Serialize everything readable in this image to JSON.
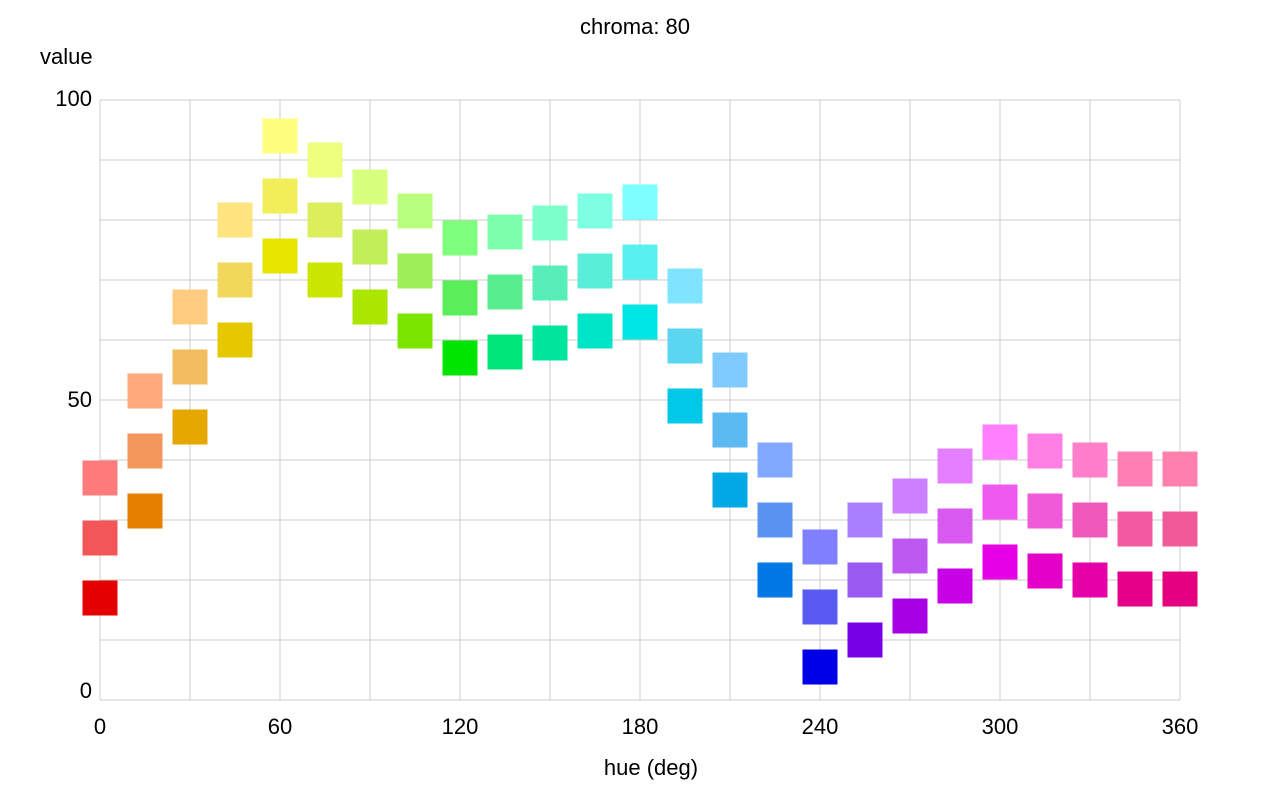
{
  "chart_data": {
    "type": "scatter",
    "title": "chroma: 80",
    "xlabel": "hue (deg)",
    "ylabel": "value",
    "xlim": [
      0,
      360
    ],
    "ylim": [
      0,
      100
    ],
    "x_ticks": [
      0,
      60,
      120,
      180,
      240,
      300,
      360
    ],
    "y_ticks": [
      0,
      50,
      100
    ],
    "grid": true,
    "marker": "square",
    "points": [
      {
        "hue": 0,
        "value": 37,
        "color": "#ff7b7b"
      },
      {
        "hue": 0,
        "value": 27,
        "color": "#f25656"
      },
      {
        "hue": 0,
        "value": 17,
        "color": "#e40000"
      },
      {
        "hue": 15,
        "value": 51.5,
        "color": "#ffaa7d"
      },
      {
        "hue": 15,
        "value": 41.5,
        "color": "#f3975d"
      },
      {
        "hue": 15,
        "value": 31.5,
        "color": "#e67e00"
      },
      {
        "hue": 30,
        "value": 65.5,
        "color": "#ffcc7f"
      },
      {
        "hue": 30,
        "value": 55.5,
        "color": "#f2bd5e"
      },
      {
        "hue": 30,
        "value": 45.5,
        "color": "#e6a800"
      },
      {
        "hue": 45,
        "value": 80,
        "color": "#ffe47f"
      },
      {
        "hue": 45,
        "value": 70,
        "color": "#f2d85a"
      },
      {
        "hue": 45,
        "value": 60,
        "color": "#e5c800"
      },
      {
        "hue": 60,
        "value": 94,
        "color": "#ffff7e"
      },
      {
        "hue": 60,
        "value": 84,
        "color": "#f0ef59"
      },
      {
        "hue": 60,
        "value": 74,
        "color": "#e5e500"
      },
      {
        "hue": 75,
        "value": 90,
        "color": "#eeff7f"
      },
      {
        "hue": 75,
        "value": 80,
        "color": "#dcee5c"
      },
      {
        "hue": 75,
        "value": 70,
        "color": "#cbe600"
      },
      {
        "hue": 90,
        "value": 85.5,
        "color": "#d8ff7d"
      },
      {
        "hue": 90,
        "value": 75.5,
        "color": "#c2ee5a"
      },
      {
        "hue": 90,
        "value": 65.5,
        "color": "#abe600"
      },
      {
        "hue": 105,
        "value": 81.5,
        "color": "#b8ff7e"
      },
      {
        "hue": 105,
        "value": 71.5,
        "color": "#9eee57"
      },
      {
        "hue": 105,
        "value": 61.5,
        "color": "#7ae600"
      },
      {
        "hue": 120,
        "value": 77,
        "color": "#7eff7e"
      },
      {
        "hue": 120,
        "value": 67,
        "color": "#5aef5a"
      },
      {
        "hue": 120,
        "value": 57,
        "color": "#00e500"
      },
      {
        "hue": 135,
        "value": 78,
        "color": "#7effad"
      },
      {
        "hue": 135,
        "value": 68,
        "color": "#58ee90"
      },
      {
        "hue": 135,
        "value": 58,
        "color": "#00e57a"
      },
      {
        "hue": 150,
        "value": 79.5,
        "color": "#7dffcc"
      },
      {
        "hue": 150,
        "value": 69.5,
        "color": "#58eeb8"
      },
      {
        "hue": 150,
        "value": 59.5,
        "color": "#00e59e"
      },
      {
        "hue": 165,
        "value": 81.5,
        "color": "#7effe4"
      },
      {
        "hue": 165,
        "value": 71.5,
        "color": "#59eed8"
      },
      {
        "hue": 165,
        "value": 61.5,
        "color": "#00e5c8"
      },
      {
        "hue": 180,
        "value": 83,
        "color": "#7effff"
      },
      {
        "hue": 180,
        "value": 73,
        "color": "#59f1f0"
      },
      {
        "hue": 180,
        "value": 63,
        "color": "#00e5e5"
      },
      {
        "hue": 195,
        "value": 69,
        "color": "#7fe4ff"
      },
      {
        "hue": 195,
        "value": 59,
        "color": "#5bd6f1"
      },
      {
        "hue": 195,
        "value": 49,
        "color": "#00c8e6"
      },
      {
        "hue": 210,
        "value": 55,
        "color": "#7fcbff"
      },
      {
        "hue": 210,
        "value": 45,
        "color": "#5bbaf2"
      },
      {
        "hue": 210,
        "value": 35,
        "color": "#00a8e6"
      },
      {
        "hue": 225,
        "value": 40,
        "color": "#80a9ff"
      },
      {
        "hue": 225,
        "value": 30,
        "color": "#5a92f2"
      },
      {
        "hue": 225,
        "value": 20,
        "color": "#0078e6"
      },
      {
        "hue": 240,
        "value": 25.5,
        "color": "#7f7fff"
      },
      {
        "hue": 240,
        "value": 15.5,
        "color": "#5a5af2"
      },
      {
        "hue": 240,
        "value": 5.5,
        "color": "#0000e6"
      },
      {
        "hue": 255,
        "value": 30,
        "color": "#aa7fff"
      },
      {
        "hue": 255,
        "value": 20,
        "color": "#9a59f1"
      },
      {
        "hue": 255,
        "value": 10,
        "color": "#7700e6"
      },
      {
        "hue": 270,
        "value": 34,
        "color": "#cc7fff"
      },
      {
        "hue": 270,
        "value": 24,
        "color": "#bd59f0"
      },
      {
        "hue": 270,
        "value": 14,
        "color": "#a800e5"
      },
      {
        "hue": 285,
        "value": 39,
        "color": "#e47fff"
      },
      {
        "hue": 285,
        "value": 29,
        "color": "#d859f0"
      },
      {
        "hue": 285,
        "value": 19,
        "color": "#c800e6"
      },
      {
        "hue": 300,
        "value": 43,
        "color": "#ff7fff"
      },
      {
        "hue": 300,
        "value": 33,
        "color": "#f059f0"
      },
      {
        "hue": 300,
        "value": 23,
        "color": "#e500e5"
      },
      {
        "hue": 315,
        "value": 41.5,
        "color": "#ff7fe4"
      },
      {
        "hue": 315,
        "value": 31.5,
        "color": "#f059d8"
      },
      {
        "hue": 315,
        "value": 21.5,
        "color": "#e500c8"
      },
      {
        "hue": 330,
        "value": 40,
        "color": "#ff7fcb"
      },
      {
        "hue": 330,
        "value": 30,
        "color": "#f059bb"
      },
      {
        "hue": 330,
        "value": 20,
        "color": "#e500a8"
      },
      {
        "hue": 345,
        "value": 38.5,
        "color": "#ff7fb4"
      },
      {
        "hue": 345,
        "value": 28.5,
        "color": "#f15aa2"
      },
      {
        "hue": 345,
        "value": 18.5,
        "color": "#e5008a"
      },
      {
        "hue": 360,
        "value": 38.5,
        "color": "#ff7fad"
      },
      {
        "hue": 360,
        "value": 28.5,
        "color": "#f15a98"
      },
      {
        "hue": 360,
        "value": 18.5,
        "color": "#e50080"
      }
    ]
  }
}
